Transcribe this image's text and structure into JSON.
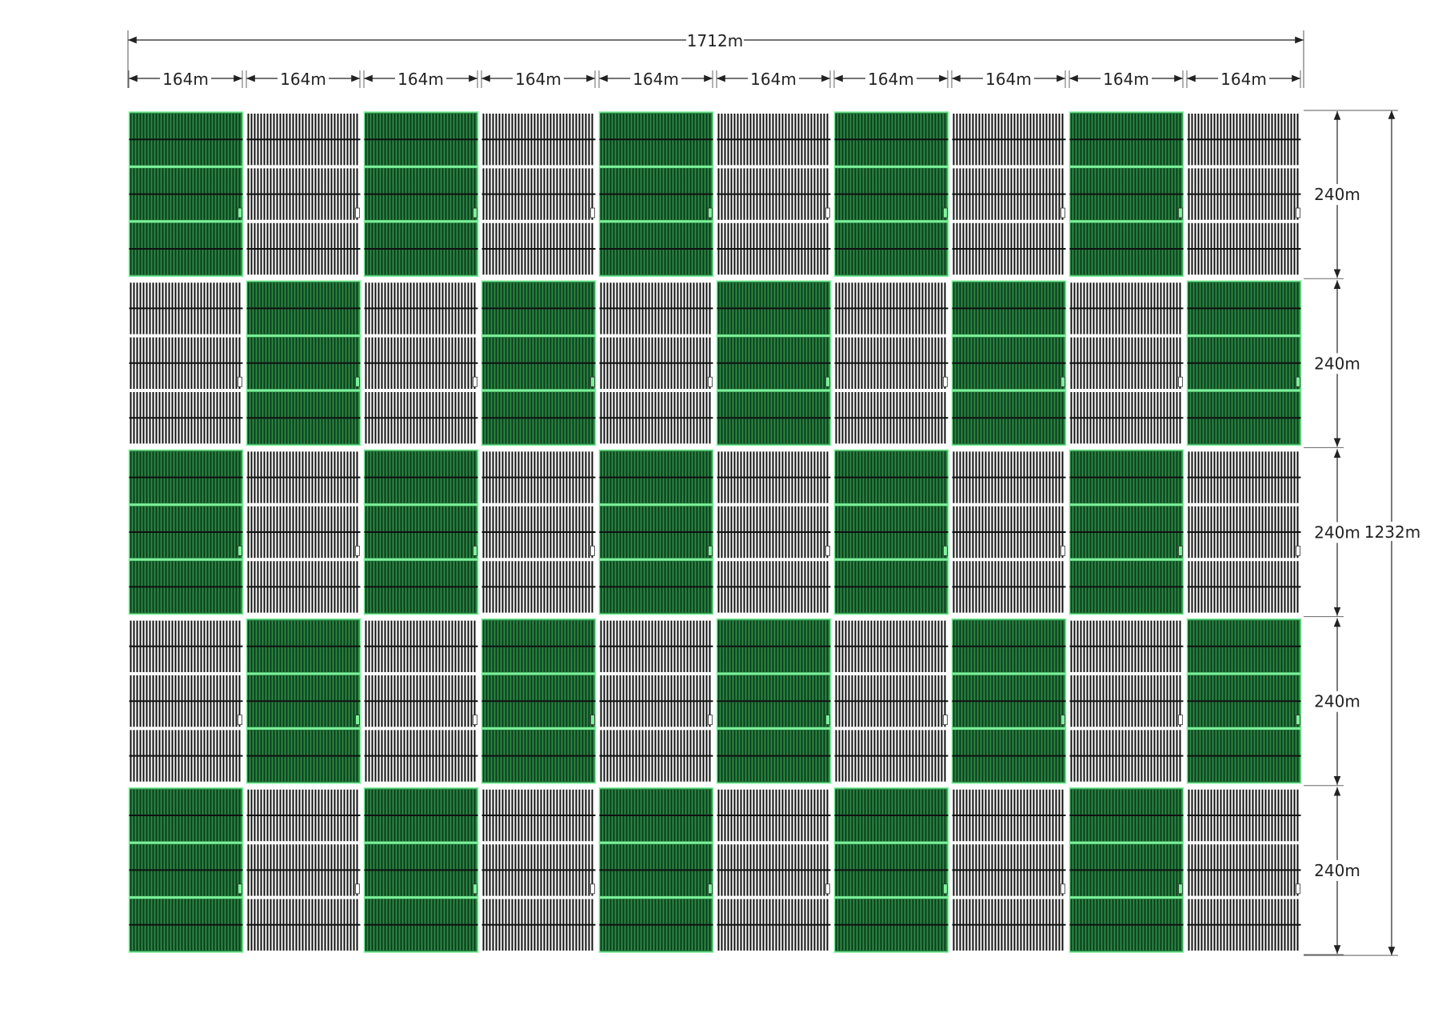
{
  "diagram": {
    "total_width_label": "1712m",
    "column_width_label": "164m",
    "row_height_label": "240m",
    "total_height_label": "1232m",
    "columns": 10,
    "rows": 5,
    "block_pattern": [
      [
        "green",
        "white",
        "green",
        "white",
        "green",
        "white",
        "green",
        "white",
        "green",
        "white"
      ],
      [
        "white",
        "green",
        "white",
        "green",
        "white",
        "green",
        "white",
        "green",
        "white",
        "green"
      ],
      [
        "green",
        "white",
        "green",
        "white",
        "green",
        "white",
        "green",
        "white",
        "green",
        "white"
      ],
      [
        "white",
        "green",
        "white",
        "green",
        "white",
        "green",
        "white",
        "green",
        "white",
        "green"
      ],
      [
        "green",
        "white",
        "green",
        "white",
        "green",
        "white",
        "green",
        "white",
        "green",
        "white"
      ]
    ],
    "colors": {
      "green_fill": "#2a8a45",
      "green_line": "#7cf09a",
      "white_fill": "#ffffff",
      "stripe": "#111111",
      "dimension": "#222222"
    }
  }
}
